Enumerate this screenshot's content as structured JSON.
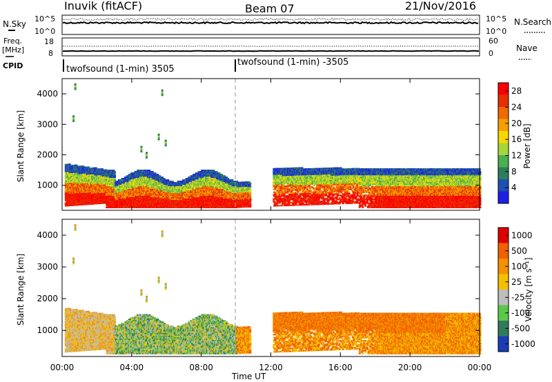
{
  "header": {
    "station": "Inuvik (fitACF)",
    "beam": "Beam 07",
    "date": "21/Nov/2016"
  },
  "noise_panel": {
    "left_label": "N.Sky",
    "right_label": "N.Search",
    "left_ticks": [
      "10^5",
      "10^0"
    ],
    "right_ticks": [
      "10^5",
      "10^0"
    ]
  },
  "freq_panel": {
    "left_label": "Freq.",
    "left_unit": "[MHz]",
    "right_label": "Nave",
    "left_ticks": [
      "18",
      "8"
    ],
    "right_ticks": [
      "60",
      "0"
    ]
  },
  "cpid": {
    "label": "CPID",
    "segments": [
      "twofsound (1-min) 3505",
      "twofsound (1-min) -3505"
    ]
  },
  "colors": {
    "power": [
      "#1e1ee6",
      "#1e50b4",
      "#2e7d5a",
      "#4caf50",
      "#a8d63a",
      "#f5d800",
      "#f5a000",
      "#f06a00",
      "#e63000",
      "#ff0000"
    ],
    "velocity": [
      "#1a3db8",
      "#2e7d5a",
      "#5cc84a",
      "#bdbdbd",
      "#f5c000",
      "#f59000",
      "#f06000",
      "#e00000"
    ]
  },
  "chart_data": [
    {
      "type": "heatmap",
      "title": "",
      "xlabel": "",
      "ylabel": "Slant Range [km]",
      "x_ticks": [
        "00:00",
        "04:00",
        "08:00",
        "12:00",
        "16:00",
        "20:00",
        "00:00"
      ],
      "y_ticks": [
        "1000",
        "2000",
        "3000",
        "4000"
      ],
      "ylim": [
        180,
        4500
      ],
      "colorbar": {
        "label": "Power [dB]",
        "ticks": [
          "4",
          "8",
          "12",
          "16",
          "20",
          "24",
          "28"
        ],
        "range": [
          0,
          30
        ]
      }
    },
    {
      "type": "heatmap",
      "title": "",
      "xlabel": "Time UT",
      "ylabel": "Slant Range [km]",
      "x_ticks": [
        "00:00",
        "04:00",
        "08:00",
        "12:00",
        "16:00",
        "20:00",
        "00:00"
      ],
      "y_ticks": [
        "1000",
        "2000",
        "3000",
        "4000"
      ],
      "ylim": [
        180,
        4500
      ],
      "colorbar": {
        "label": "Velocity [m s⁻¹]",
        "ticks": [
          "1000",
          "500",
          "100",
          "25",
          "-25",
          "-100",
          "-500",
          "-1000"
        ]
      }
    }
  ]
}
